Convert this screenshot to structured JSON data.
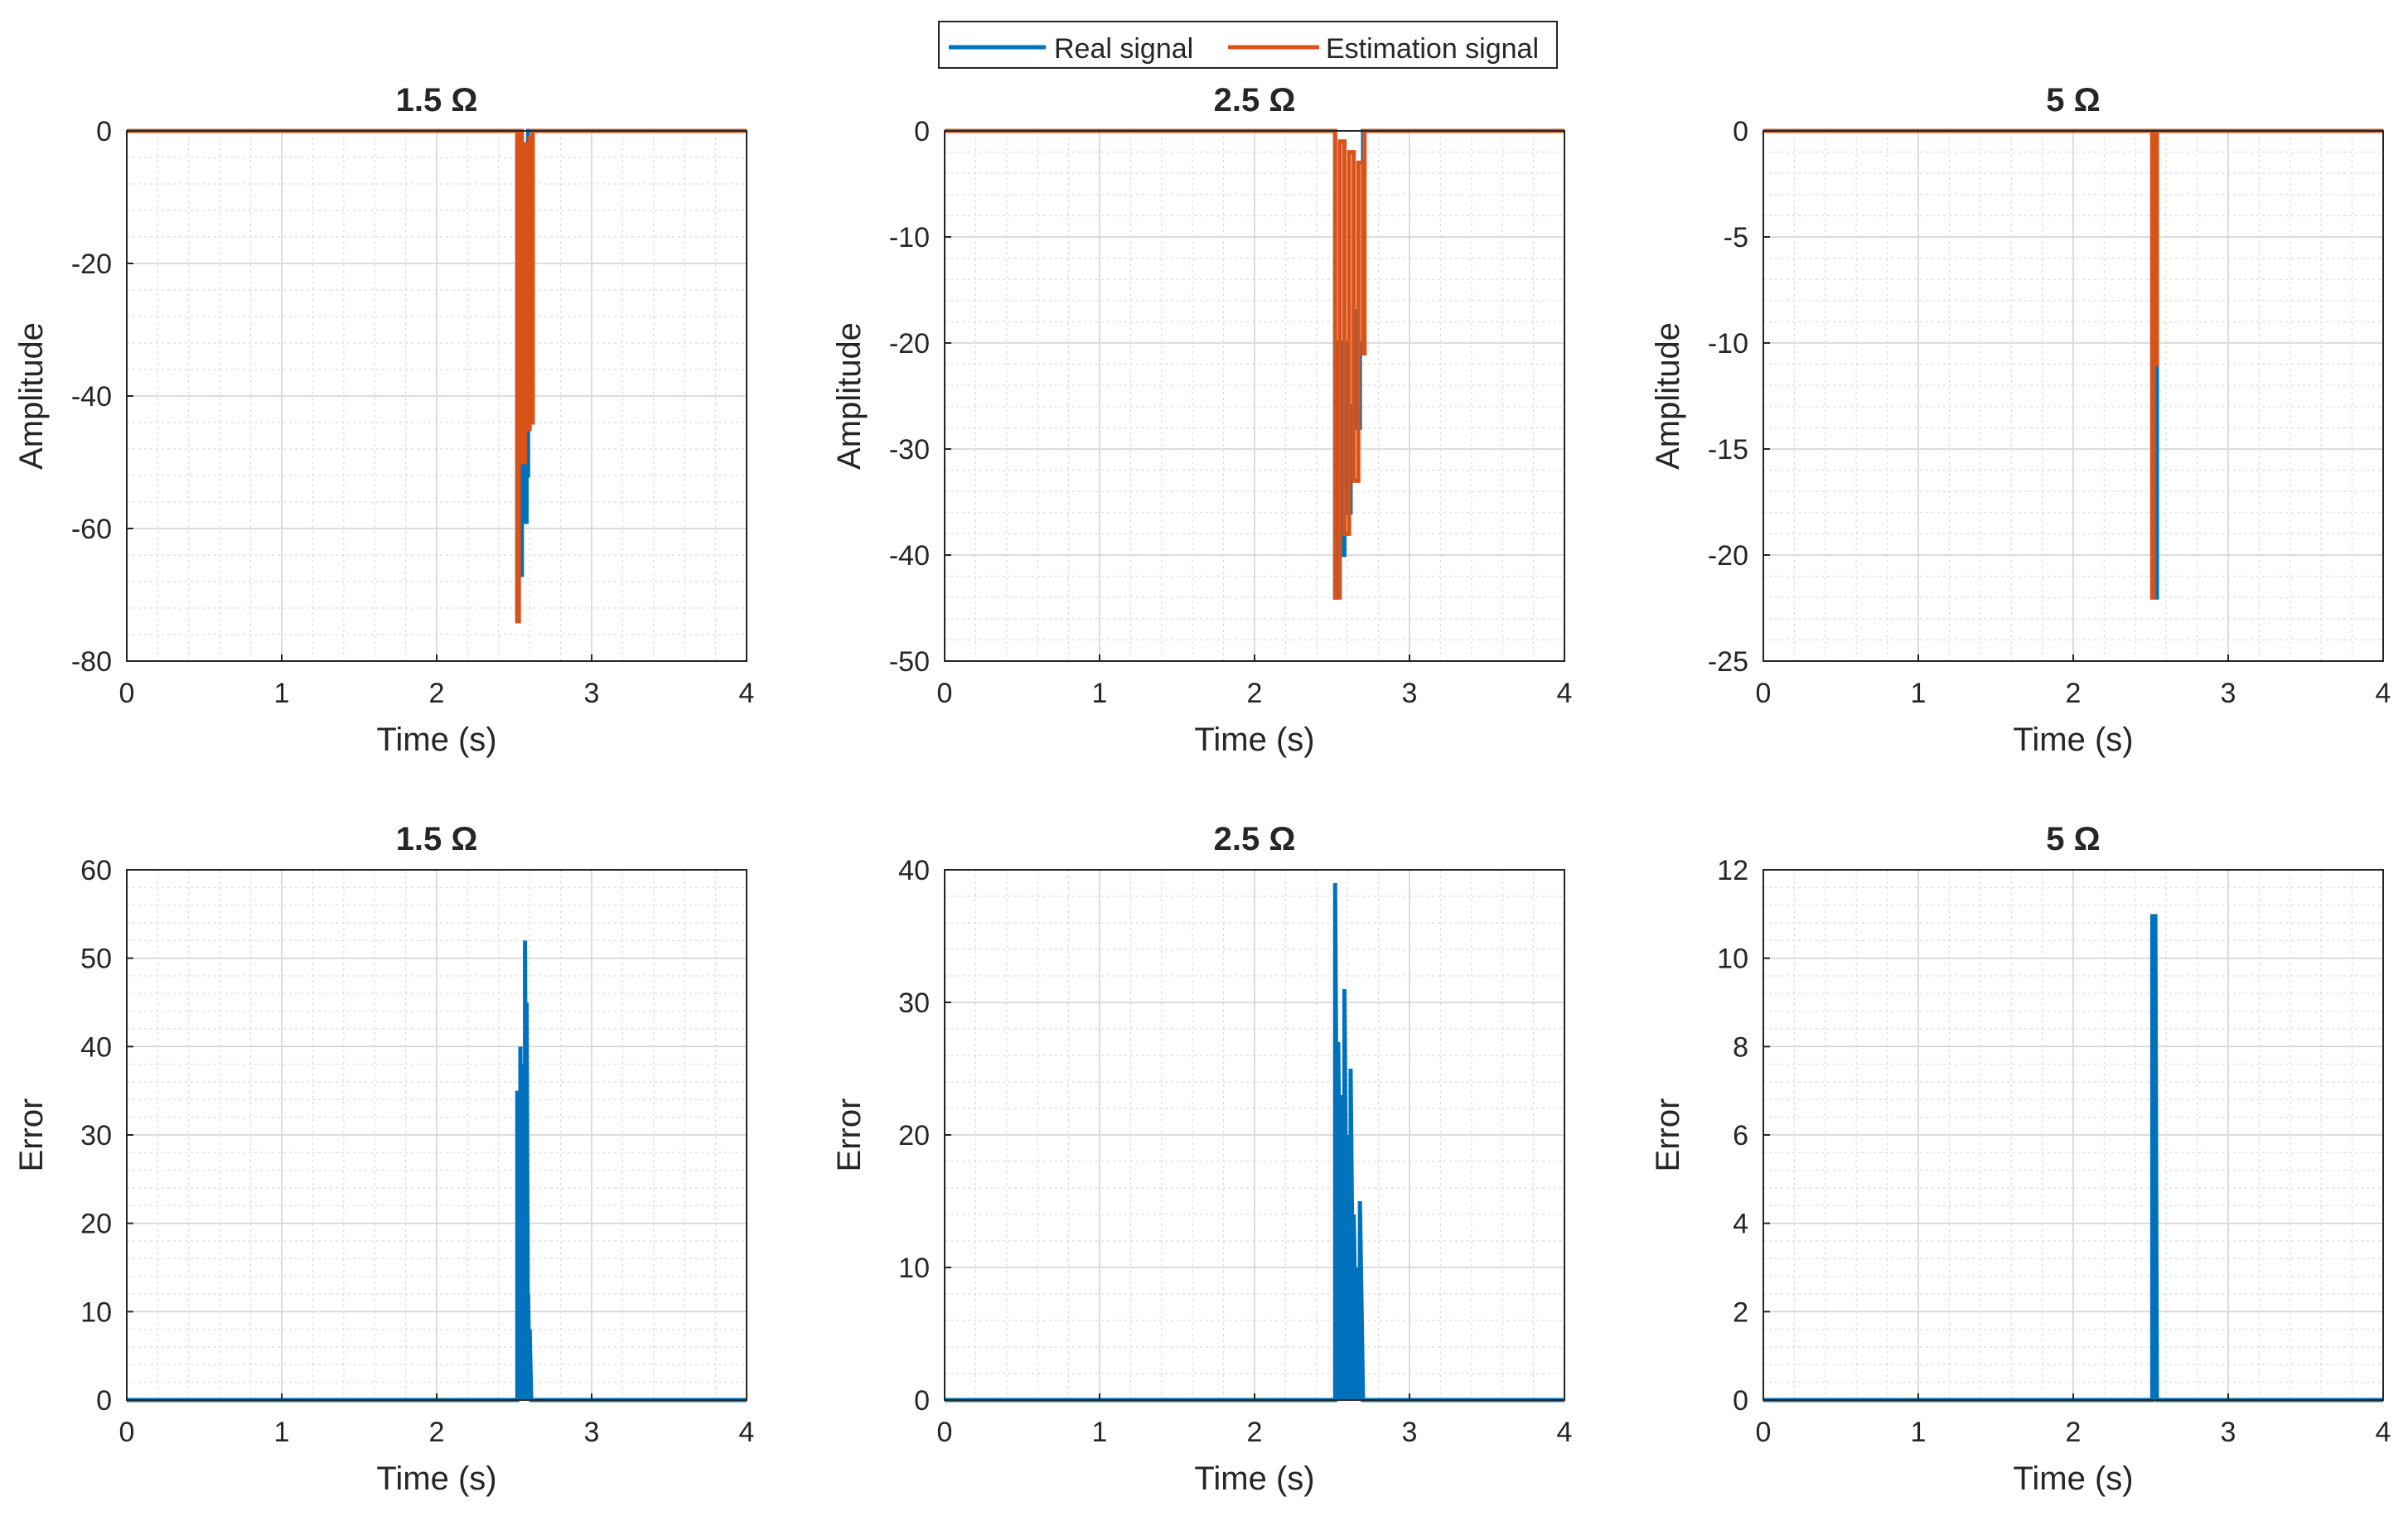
{
  "figure": {
    "legend": {
      "entries": [
        {
          "label": "Real signal",
          "color": "#0072BD"
        },
        {
          "label": "Estimation signal",
          "color": "#D95319"
        }
      ]
    }
  },
  "chart_data": [
    {
      "type": "line",
      "title": "1.5 Ω",
      "xlabel": "Time (s)",
      "ylabel": "Amplitude",
      "xlim": [
        0,
        4
      ],
      "ylim": [
        -80,
        0
      ],
      "xticks": [
        0,
        1,
        2,
        3,
        4
      ],
      "yticks": [
        -80,
        -60,
        -40,
        -20,
        0
      ],
      "grid": "major+minor",
      "series": [
        {
          "name": "Real signal",
          "color": "#0072BD",
          "x": [
            0,
            2.52,
            2.52,
            2.53,
            2.53,
            2.54,
            2.54,
            2.55,
            2.55,
            2.56,
            2.56,
            2.57,
            2.57,
            2.58,
            2.58,
            2.59,
            2.59,
            4
          ],
          "y": [
            0,
            0,
            -74,
            -74,
            -60,
            -60,
            -67,
            -67,
            -35,
            -35,
            -50,
            -50,
            -59,
            -59,
            -52,
            -52,
            0,
            0
          ]
        },
        {
          "name": "Estimation signal",
          "color": "#D95319",
          "x": [
            0,
            2.52,
            2.52,
            2.53,
            2.53,
            2.55,
            2.55,
            2.57,
            2.57,
            2.58,
            2.58,
            2.6,
            2.6,
            2.61,
            2.61,
            2.62,
            2.62,
            4
          ],
          "y": [
            0,
            0,
            -74,
            -74,
            0,
            0,
            -50,
            -50,
            -2,
            -2,
            -45,
            -45,
            -1,
            -1,
            -44,
            -44,
            0,
            0
          ]
        }
      ]
    },
    {
      "type": "line",
      "title": "2.5 Ω",
      "xlabel": "Time (s)",
      "ylabel": "Amplitude",
      "xlim": [
        0,
        4
      ],
      "ylim": [
        -50,
        0
      ],
      "xticks": [
        0,
        1,
        2,
        3,
        4
      ],
      "yticks": [
        -50,
        -40,
        -30,
        -20,
        -10,
        0
      ],
      "grid": "major+minor",
      "series": [
        {
          "name": "Real signal",
          "color": "#0072BD",
          "x": [
            0,
            2.52,
            2.52,
            2.54,
            2.54,
            2.56,
            2.56,
            2.58,
            2.58,
            2.6,
            2.6,
            2.62,
            2.62,
            2.64,
            2.64,
            2.66,
            2.66,
            2.68,
            2.68,
            2.7,
            2.7,
            4
          ],
          "y": [
            0,
            0,
            -44,
            -44,
            -20,
            -20,
            -40,
            -40,
            -20,
            -20,
            -36,
            -36,
            -26,
            -26,
            -17,
            -17,
            -28,
            -28,
            -20,
            -20,
            0,
            0
          ]
        },
        {
          "name": "Estimation signal",
          "color": "#D95319",
          "x": [
            0,
            2.52,
            2.52,
            2.55,
            2.55,
            2.58,
            2.58,
            2.61,
            2.61,
            2.64,
            2.64,
            2.67,
            2.67,
            2.7,
            2.7,
            2.71,
            2.71,
            4
          ],
          "y": [
            0,
            0,
            -44,
            -44,
            -1,
            -1,
            -38,
            -38,
            -2,
            -2,
            -33,
            -33,
            -3,
            -3,
            -21,
            -21,
            0,
            0
          ]
        }
      ]
    },
    {
      "type": "line",
      "title": "5 Ω",
      "xlabel": "Time (s)",
      "ylabel": "Amplitude",
      "xlim": [
        0,
        4
      ],
      "ylim": [
        -25,
        0
      ],
      "xticks": [
        0,
        1,
        2,
        3,
        4
      ],
      "yticks": [
        -25,
        -20,
        -15,
        -10,
        -5,
        0
      ],
      "grid": "major+minor",
      "series": [
        {
          "name": "Real signal",
          "color": "#0072BD",
          "x": [
            0,
            2.51,
            2.51,
            2.52,
            2.52,
            2.53,
            2.53,
            2.54,
            2.54,
            4
          ],
          "y": [
            0,
            0,
            -22,
            -22,
            -11,
            -11,
            -22,
            -22,
            0,
            0
          ]
        },
        {
          "name": "Estimation signal",
          "color": "#D95319",
          "x": [
            0,
            2.51,
            2.51,
            2.52,
            2.52,
            2.53,
            2.53,
            2.54,
            2.54,
            4
          ],
          "y": [
            0,
            0,
            -22,
            -22,
            0,
            0,
            -11,
            -11,
            0,
            0
          ]
        }
      ]
    },
    {
      "type": "line",
      "title": "1.5 Ω",
      "xlabel": "Time (s)",
      "ylabel": "Error",
      "xlim": [
        0,
        4
      ],
      "ylim": [
        0,
        60
      ],
      "xticks": [
        0,
        1,
        2,
        3,
        4
      ],
      "yticks": [
        0,
        10,
        20,
        30,
        40,
        50,
        60
      ],
      "grid": "major+minor",
      "series": [
        {
          "name": "Error",
          "color": "#0072BD",
          "x": [
            0,
            2.52,
            2.52,
            2.53,
            2.53,
            2.54,
            2.54,
            2.55,
            2.55,
            2.56,
            2.56,
            2.57,
            2.57,
            2.58,
            2.58,
            2.59,
            2.59,
            2.6,
            2.6,
            2.61,
            2.61,
            4
          ],
          "y": [
            0,
            0,
            35,
            0,
            32,
            0,
            40,
            2,
            38,
            0,
            30,
            0,
            52,
            0,
            45,
            0,
            12,
            0,
            8,
            0,
            0,
            0
          ]
        }
      ]
    },
    {
      "type": "line",
      "title": "2.5 Ω",
      "xlabel": "Time (s)",
      "ylabel": "Error",
      "xlim": [
        0,
        4
      ],
      "ylim": [
        0,
        40
      ],
      "xticks": [
        0,
        1,
        2,
        3,
        4
      ],
      "yticks": [
        0,
        10,
        20,
        30,
        40
      ],
      "grid": "major+minor",
      "series": [
        {
          "name": "Error",
          "color": "#0072BD",
          "x": [
            0,
            2.52,
            2.52,
            2.54,
            2.54,
            2.56,
            2.56,
            2.58,
            2.58,
            2.6,
            2.6,
            2.62,
            2.62,
            2.64,
            2.64,
            2.66,
            2.66,
            2.68,
            2.68,
            2.7,
            2.7,
            4
          ],
          "y": [
            0,
            0,
            39,
            0,
            27,
            0,
            23,
            0,
            31,
            0,
            20,
            0,
            25,
            0,
            14,
            0,
            10,
            0,
            15,
            0,
            0,
            0
          ]
        }
      ]
    },
    {
      "type": "line",
      "title": "5 Ω",
      "xlabel": "Time (s)",
      "ylabel": "Error",
      "xlim": [
        0,
        4
      ],
      "ylim": [
        0,
        12
      ],
      "xticks": [
        0,
        1,
        2,
        3,
        4
      ],
      "yticks": [
        0,
        2,
        4,
        6,
        8,
        10,
        12
      ],
      "grid": "major+minor",
      "series": [
        {
          "name": "Error",
          "color": "#0072BD",
          "x": [
            0,
            2.51,
            2.51,
            2.52,
            2.52,
            2.53,
            2.53,
            2.54,
            2.54,
            4
          ],
          "y": [
            0,
            0,
            11,
            0,
            11,
            0,
            11,
            0,
            0,
            0
          ]
        }
      ]
    }
  ]
}
